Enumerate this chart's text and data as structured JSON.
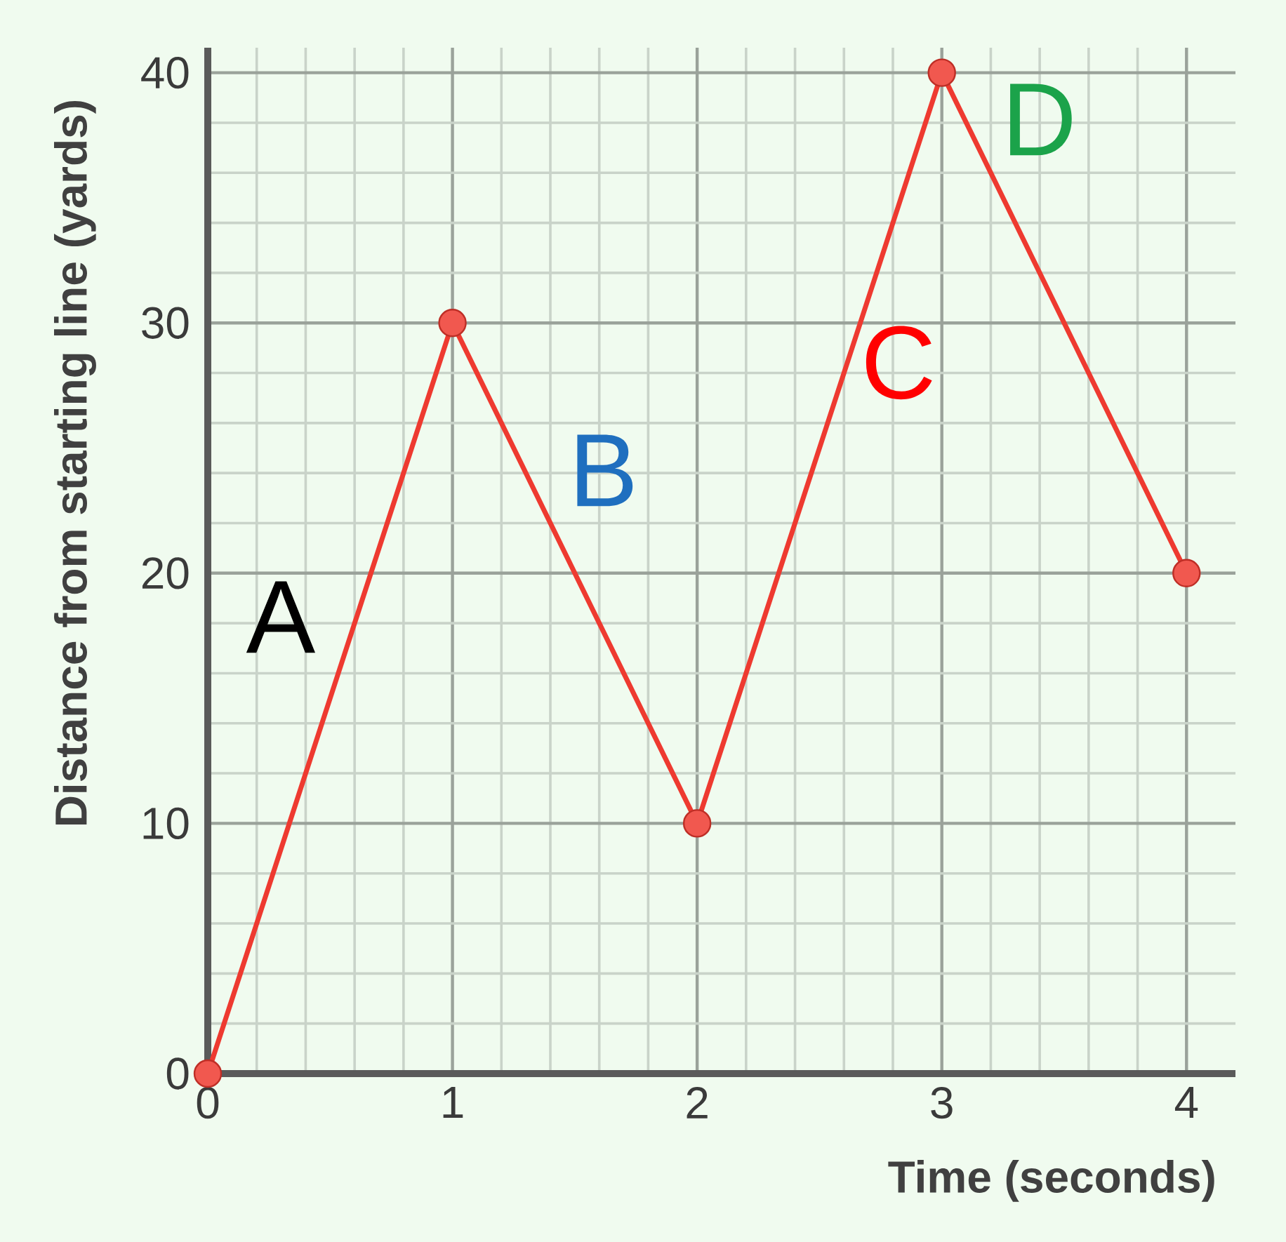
{
  "chart_data": {
    "type": "line",
    "xlabel": "Time (seconds)",
    "ylabel": "Distance from starting line (yards)",
    "x": [
      0,
      1,
      2,
      3,
      4
    ],
    "values": [
      0,
      30,
      10,
      40,
      20
    ],
    "color": "#ee3a30",
    "xlim": [
      0,
      4.2
    ],
    "ylim": [
      0,
      41
    ],
    "xticks": [
      0,
      1,
      2,
      3,
      4
    ],
    "yticks": [
      0,
      10,
      20,
      30,
      40
    ],
    "grid": true,
    "marker": "circle",
    "line_style": "solid",
    "annotations": [
      "A",
      "B",
      "C",
      "D"
    ]
  }
}
